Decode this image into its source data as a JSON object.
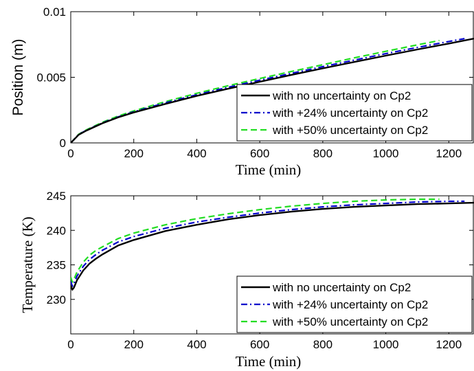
{
  "chart_data": [
    {
      "type": "line",
      "xlabel": "Time (min)",
      "ylabel": "Position (m)",
      "xlim": [
        0,
        1280
      ],
      "ylim": [
        0,
        0.01
      ],
      "xticks": [
        "0",
        "200",
        "400",
        "600",
        "800",
        "1000",
        "1200"
      ],
      "yticks": [
        "0",
        "0.005",
        "0.01"
      ],
      "legend_position": "lower-right",
      "series": [
        {
          "name": "with no uncertainty on Cp2",
          "color": "#000000",
          "style": "solid",
          "x": [
            0,
            25,
            50,
            100,
            150,
            200,
            300,
            400,
            500,
            600,
            700,
            800,
            900,
            1000,
            1100,
            1200,
            1280
          ],
          "y": [
            0.0,
            0.00062,
            0.00094,
            0.00149,
            0.00194,
            0.00232,
            0.00297,
            0.00358,
            0.00413,
            0.00466,
            0.00518,
            0.00568,
            0.00617,
            0.00665,
            0.00712,
            0.00757,
            0.00795
          ]
        },
        {
          "name": "with +24% uncertainty on Cp2",
          "color": "#0000cc",
          "style": "dashdot",
          "x": [
            0,
            25,
            50,
            100,
            150,
            200,
            300,
            400,
            500,
            600,
            700,
            800,
            900,
            1000,
            1100,
            1200,
            1250
          ],
          "y": [
            0.0,
            0.00064,
            0.00097,
            0.00152,
            0.00198,
            0.00237,
            0.00305,
            0.00367,
            0.00424,
            0.00478,
            0.0053,
            0.00581,
            0.00631,
            0.0068,
            0.00727,
            0.00773,
            0.00795
          ]
        },
        {
          "name": "with +50% uncertainty on Cp2",
          "color": "#22dd22",
          "style": "dashed",
          "x": [
            0,
            25,
            50,
            100,
            150,
            200,
            300,
            400,
            500,
            600,
            700,
            800,
            900,
            1000,
            1100,
            1170
          ],
          "y": [
            0.0,
            0.00066,
            0.001,
            0.00157,
            0.00204,
            0.00244,
            0.00314,
            0.00378,
            0.00436,
            0.00491,
            0.00544,
            0.00596,
            0.00648,
            0.00698,
            0.00747,
            0.0078
          ]
        }
      ]
    },
    {
      "type": "line",
      "xlabel": "Time (min)",
      "ylabel": "Temperature (K)",
      "xlim": [
        0,
        1280
      ],
      "ylim": [
        225,
        245
      ],
      "xticks": [
        "0",
        "200",
        "400",
        "600",
        "800",
        "1000",
        "1200"
      ],
      "yticks": [
        "230",
        "235",
        "240",
        "245"
      ],
      "legend_position": "lower-right",
      "series": [
        {
          "name": "with no uncertainty on Cp2",
          "color": "#000000",
          "style": "solid",
          "x": [
            0,
            5,
            10,
            20,
            40,
            60,
            80,
            100,
            150,
            200,
            300,
            400,
            500,
            600,
            700,
            800,
            900,
            1000,
            1100,
            1200,
            1280
          ],
          "y": [
            232.0,
            231.4,
            231.7,
            232.8,
            234.2,
            235.2,
            235.9,
            236.5,
            237.8,
            238.6,
            239.9,
            240.8,
            241.6,
            242.2,
            242.7,
            243.1,
            243.4,
            243.6,
            243.8,
            243.9,
            244.0
          ]
        },
        {
          "name": "with +24% uncertainty on Cp2",
          "color": "#0000cc",
          "style": "dashdot",
          "x": [
            0,
            5,
            10,
            20,
            40,
            60,
            80,
            100,
            150,
            200,
            300,
            400,
            500,
            600,
            700,
            800,
            900,
            1000,
            1100,
            1200,
            1250
          ],
          "y": [
            232.6,
            231.9,
            232.3,
            233.4,
            234.8,
            235.8,
            236.5,
            237.1,
            238.3,
            239.1,
            240.3,
            241.2,
            241.9,
            242.5,
            243.0,
            243.4,
            243.7,
            243.9,
            244.1,
            244.2,
            244.2
          ]
        },
        {
          "name": "with +50% uncertainty on Cp2",
          "color": "#22dd22",
          "style": "dashed",
          "x": [
            0,
            5,
            10,
            20,
            40,
            60,
            80,
            100,
            150,
            200,
            300,
            400,
            500,
            600,
            700,
            800,
            900,
            1000,
            1100,
            1170
          ],
          "y": [
            233.2,
            232.5,
            232.9,
            234.0,
            235.4,
            236.4,
            237.1,
            237.6,
            238.8,
            239.6,
            240.8,
            241.7,
            242.4,
            243.0,
            243.5,
            243.9,
            244.2,
            244.4,
            244.5,
            244.5
          ]
        }
      ]
    }
  ]
}
